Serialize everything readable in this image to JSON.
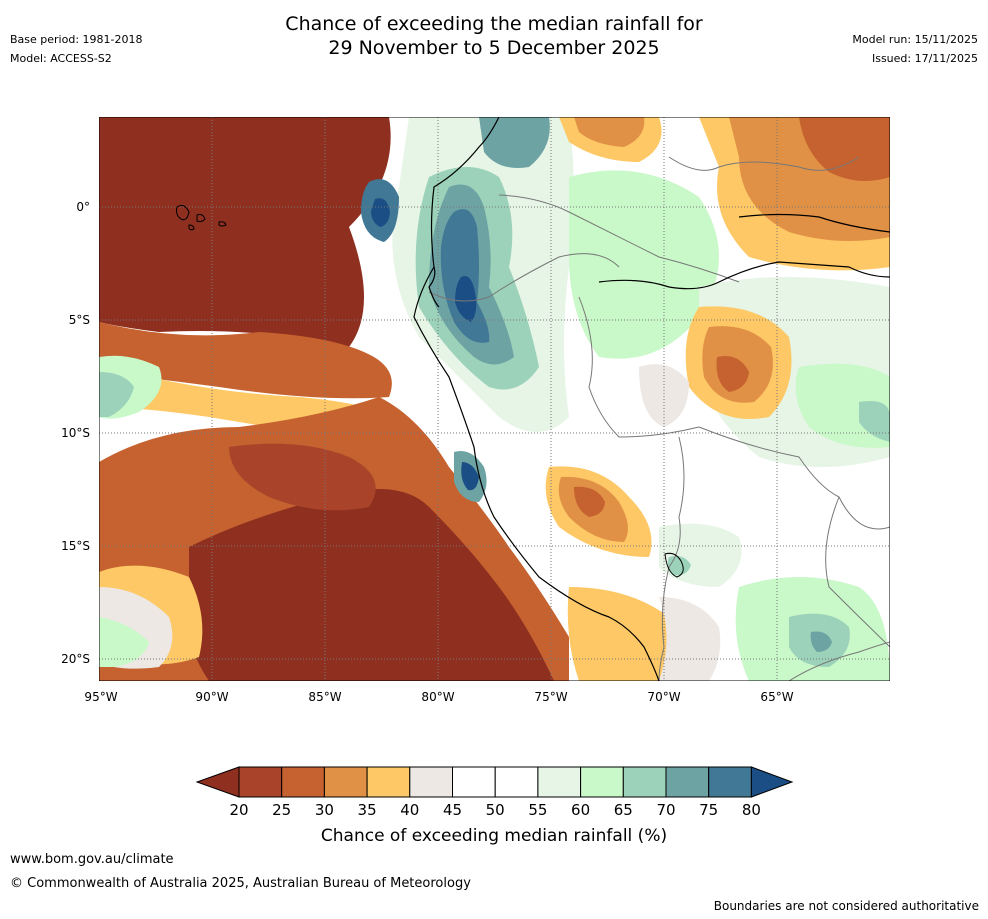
{
  "header": {
    "title_line1": "Chance of exceeding the median rainfall for",
    "title_line2": "29 November to 5 December 2025",
    "base_period": "Base period: 1981-2018",
    "model": "Model: ACCESS-S2",
    "model_run": "Model run: 15/11/2025",
    "issued": "Issued: 17/11/2025"
  },
  "map": {
    "lat_labels": [
      "0°",
      "5°S",
      "10°S",
      "15°S",
      "20°S"
    ],
    "lon_labels": [
      "95°W",
      "90°W",
      "85°W",
      "80°W",
      "75°W",
      "70°W",
      "65°W"
    ]
  },
  "colorbar": {
    "ticks": [
      "20",
      "25",
      "30",
      "35",
      "40",
      "45",
      "50",
      "55",
      "60",
      "65",
      "70",
      "75",
      "80"
    ],
    "colors": {
      "below20": "#8f2f1f",
      "b20_25": "#a9432a",
      "b25_30": "#c5622f",
      "b30_35": "#e19146",
      "b35_40": "#fdc865",
      "b40_45": "#ede8e4",
      "b45_50": "#ffffff",
      "b50_55": "#ffffff",
      "b55_60": "#e6f5e6",
      "b60_65": "#c9f8c9",
      "b65_70": "#9bd2b9",
      "b70_75": "#6ea3a4",
      "b75_80": "#417895",
      "above80": "#1a4e85"
    },
    "label": "Chance of exceeding median rainfall (%)"
  },
  "footer": {
    "url": "www.bom.gov.au/climate",
    "copyright": "© Commonwealth of Australia 2025, Australian Bureau of Meteorology",
    "disclaimer": "Boundaries are not considered authoritative"
  }
}
